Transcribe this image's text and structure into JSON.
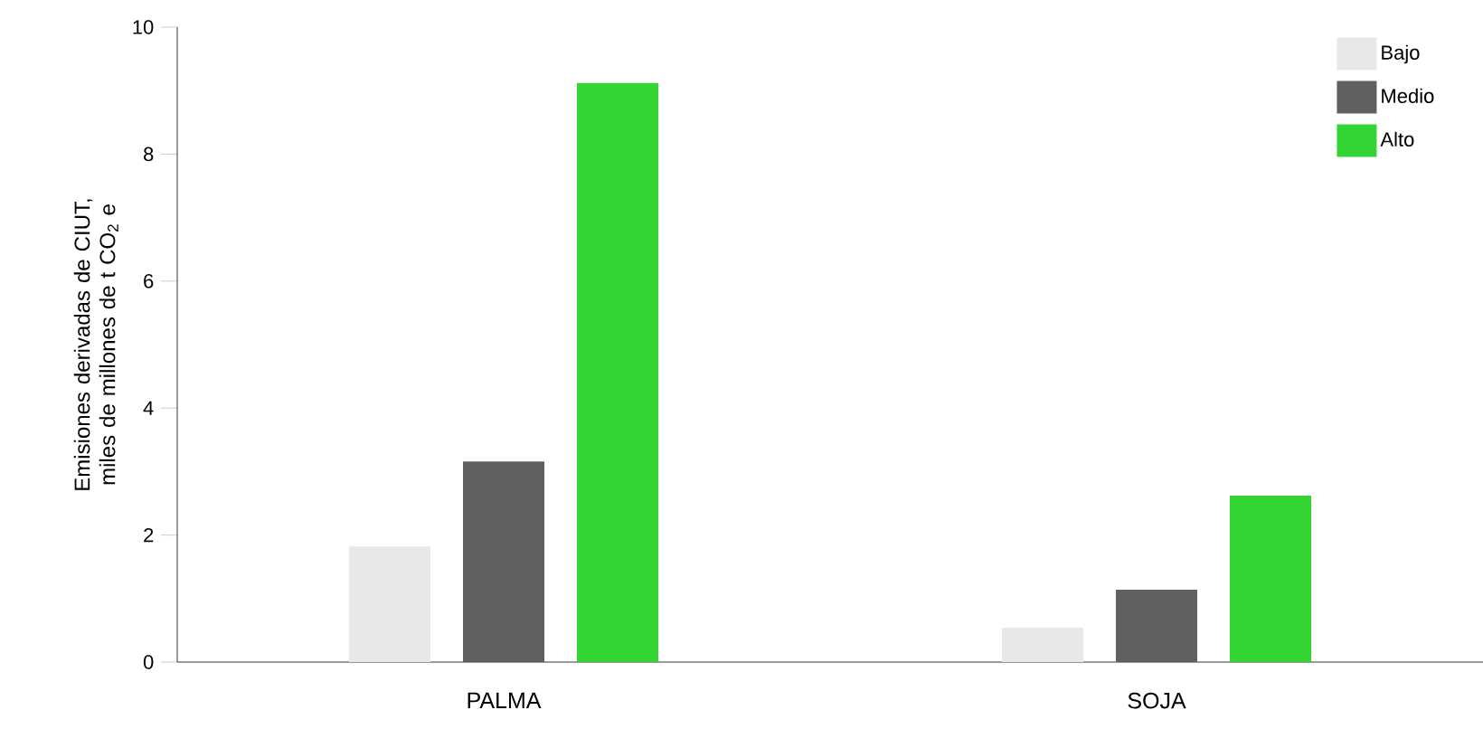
{
  "chart_data": {
    "type": "bar",
    "ylabel": "Emisiones derivadas de CIUT, miles de millones de t CO$_{2}$ e",
    "categories": [
      "PALMA",
      "SOJA"
    ],
    "series": [
      {
        "name": "Bajo",
        "color": "#e8e8e8",
        "values": [
          1.82,
          0.54
        ]
      },
      {
        "name": "Medio",
        "color": "#606060",
        "values": [
          3.16,
          1.14
        ]
      },
      {
        "name": "Alto",
        "color": "#33d433",
        "values": [
          9.12,
          2.62
        ]
      }
    ],
    "ylim": [
      0,
      10
    ],
    "yticks": [
      0,
      2,
      4,
      6,
      8,
      10
    ],
    "grid": false,
    "legend": "top right"
  }
}
